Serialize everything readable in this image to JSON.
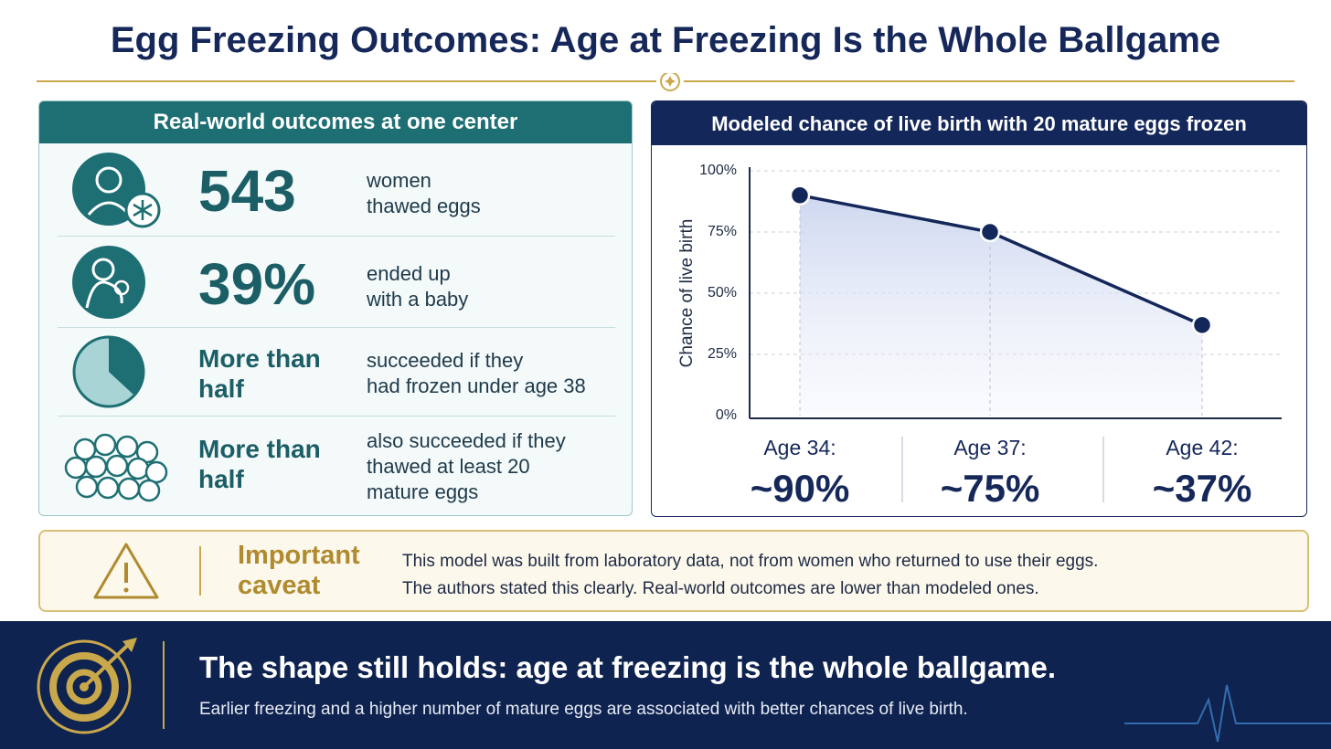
{
  "header": {
    "title": "Egg Freezing Outcomes: Age at Freezing Is the Whole Ballgame"
  },
  "left_panel": {
    "title": "Real-world outcomes at one center",
    "rows": [
      {
        "figure": [
          "543"
        ],
        "text": [
          "women",
          "thawed eggs"
        ]
      },
      {
        "figure": [
          "39%"
        ],
        "text": [
          "ended up",
          "with a baby"
        ]
      },
      {
        "figure": [
          "More than",
          "half"
        ],
        "text": [
          "succeeded if they",
          "had frozen under age 38"
        ]
      },
      {
        "figure": [
          "More than",
          "half"
        ],
        "text": [
          "also succeeded if they",
          "thawed at least 20",
          "mature eggs"
        ]
      }
    ]
  },
  "chart_data": {
    "type": "line",
    "title": "Modeled chance of live birth with 20 mature eggs frozen",
    "y_label": "Chance of live birth",
    "categories": [
      "Age 34:",
      "Age 37:",
      "Age 42:"
    ],
    "values": [
      90,
      75,
      37
    ],
    "value_labels": [
      "~90%",
      "~75%",
      "~37%"
    ],
    "color": "#14275a",
    "ylim": [
      0,
      100
    ],
    "yticks": [
      {
        "value": 0,
        "label": "0%"
      },
      {
        "value": 25,
        "label": "25%"
      },
      {
        "value": 50,
        "label": "50%"
      },
      {
        "value": 75,
        "label": "75%"
      },
      {
        "value": 100,
        "label": "100%"
      }
    ],
    "grid": true
  },
  "caveat": {
    "title": [
      "Important",
      "caveat"
    ],
    "text": [
      "This model was built from laboratory data, not from women who returned to use their eggs.",
      "The authors stated this clearly. Real-world outcomes are lower than modeled ones."
    ]
  },
  "footer": {
    "headline": "The shape still holds: age at freezing is the whole ballgame.",
    "subtext": "Earlier freezing and a higher number of mature eggs are associated with better chances of live birth."
  }
}
